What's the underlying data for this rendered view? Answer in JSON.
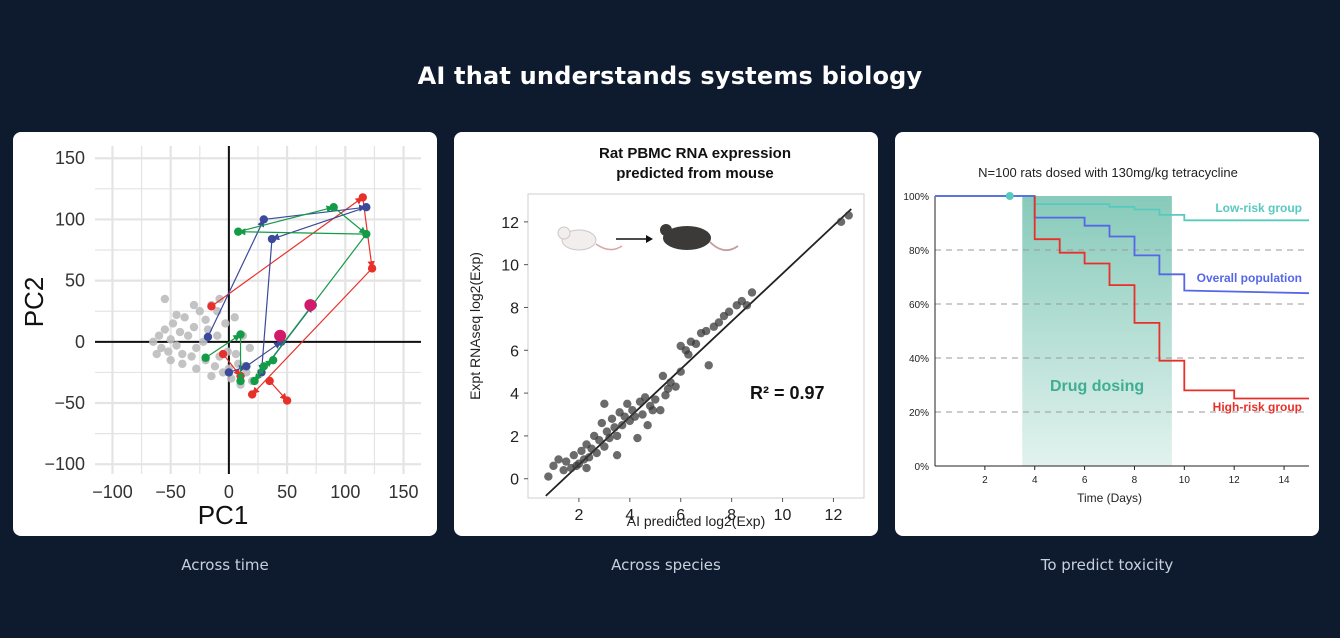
{
  "headline": "AI that understands systems biology",
  "captions": [
    "Across time",
    "Across species",
    "To predict toxicity"
  ],
  "colors": {
    "background": "#0e1a2e",
    "gray": "#bdbdbd",
    "red": "#e8302a",
    "blue": "#3b4a9a",
    "green": "#139b48",
    "magenta": "#d11a6a",
    "teal": "#58c9bf",
    "overall": "#5566e8",
    "dosing": "#5fb9a3"
  },
  "chart_data": [
    {
      "type": "scatter",
      "xlabel": "PC1",
      "ylabel": "PC2",
      "xlim": [
        -115,
        165
      ],
      "ylim": [
        -108,
        160
      ],
      "xticks": [
        "−100",
        "−50",
        "0",
        "50",
        "100",
        "150"
      ],
      "yticks": [
        "−100",
        "−50",
        "0",
        "50",
        "100",
        "150"
      ],
      "grid": true,
      "series": [
        {
          "color": "gray",
          "points": [
            [
              -65,
              0
            ],
            [
              -60,
              5
            ],
            [
              -58,
              -5
            ],
            [
              -55,
              10
            ],
            [
              -52,
              -8
            ],
            [
              -50,
              2
            ],
            [
              -48,
              15
            ],
            [
              -45,
              -3
            ],
            [
              -42,
              8
            ],
            [
              -40,
              -10
            ],
            [
              -38,
              20
            ],
            [
              -35,
              5
            ],
            [
              -32,
              -12
            ],
            [
              -30,
              12
            ],
            [
              -28,
              -5
            ],
            [
              -25,
              25
            ],
            [
              -22,
              0
            ],
            [
              -20,
              -15
            ],
            [
              -18,
              10
            ],
            [
              -15,
              30
            ],
            [
              -12,
              -20
            ],
            [
              -10,
              5
            ],
            [
              -8,
              35
            ],
            [
              -5,
              -25
            ],
            [
              -3,
              15
            ],
            [
              -1,
              -8
            ],
            [
              2,
              -30
            ],
            [
              5,
              20
            ],
            [
              8,
              -18
            ],
            [
              10,
              -35
            ],
            [
              12,
              5
            ],
            [
              15,
              -25
            ],
            [
              18,
              -5
            ],
            [
              20,
              -32
            ],
            [
              -55,
              35
            ],
            [
              -45,
              22
            ],
            [
              -30,
              30
            ],
            [
              -20,
              18
            ],
            [
              -10,
              25
            ],
            [
              -62,
              -10
            ],
            [
              -50,
              -15
            ],
            [
              -40,
              -18
            ],
            [
              -28,
              -22
            ],
            [
              -15,
              -28
            ],
            [
              0,
              -22
            ],
            [
              -8,
              -12
            ],
            [
              6,
              -10
            ],
            [
              14,
              -20
            ]
          ]
        },
        {
          "name": "",
          "color": "red",
          "points": [
            [
              -15,
              29
            ],
            [
              -5,
              -10
            ],
            [
              10,
              -28
            ],
            [
              20,
              -43
            ],
            [
              35,
              -32
            ],
            [
              50,
              -48
            ],
            [
              115,
              118
            ],
            [
              123,
              60
            ],
            [
              70,
              30
            ]
          ],
          "edges": [
            [
              0,
              6
            ],
            [
              6,
              7
            ],
            [
              7,
              3
            ],
            [
              4,
              5
            ],
            [
              1,
              2
            ]
          ]
        },
        {
          "color": "blue",
          "points": [
            [
              -18,
              4
            ],
            [
              0,
              -25
            ],
            [
              15,
              -20
            ],
            [
              28,
              -25
            ],
            [
              30,
              100
            ],
            [
              37,
              84
            ],
            [
              118,
              110
            ],
            [
              72,
              30
            ],
            [
              45,
              0
            ]
          ],
          "edges": [
            [
              0,
              4
            ],
            [
              4,
              6
            ],
            [
              6,
              5
            ],
            [
              5,
              3
            ],
            [
              3,
              7
            ],
            [
              1,
              2
            ],
            [
              2,
              8
            ]
          ]
        },
        {
          "color": "green",
          "points": [
            [
              -20,
              -13
            ],
            [
              8,
              90
            ],
            [
              10,
              6
            ],
            [
              10,
              -32
            ],
            [
              22,
              -32
            ],
            [
              30,
              -20
            ],
            [
              38,
              -15
            ],
            [
              90,
              110
            ],
            [
              118,
              88
            ]
          ],
          "edges": [
            [
              1,
              7
            ],
            [
              7,
              8
            ],
            [
              8,
              1
            ],
            [
              8,
              4
            ],
            [
              4,
              5
            ],
            [
              5,
              6
            ],
            [
              2,
              3
            ],
            [
              0,
              2
            ]
          ]
        },
        {
          "color": "magenta",
          "large": true,
          "points": [
            [
              44,
              5
            ],
            [
              70,
              30
            ]
          ]
        }
      ]
    },
    {
      "type": "scatter",
      "title_lines": [
        "Rat PBMC RNA expression",
        "predicted from mouse"
      ],
      "xlabel": "AI predicted log2(Exp)",
      "ylabel": "Expt RNAseq log2(Exp)",
      "xlim": [
        0,
        13.2
      ],
      "ylim": [
        -0.9,
        13.3
      ],
      "xticks": [
        "2",
        "4",
        "6",
        "8",
        "10",
        "12"
      ],
      "yticks": [
        "0",
        "2",
        "4",
        "6",
        "8",
        "10",
        "12"
      ],
      "annotation": "R² = 0.97",
      "fit_line": [
        [
          0.7,
          -0.8
        ],
        [
          12.7,
          12.6
        ]
      ],
      "points": [
        [
          0.8,
          0.1
        ],
        [
          1.0,
          0.6
        ],
        [
          1.2,
          0.9
        ],
        [
          1.4,
          0.4
        ],
        [
          1.5,
          0.8
        ],
        [
          1.7,
          0.5
        ],
        [
          1.8,
          1.1
        ],
        [
          2.0,
          0.7
        ],
        [
          2.1,
          1.3
        ],
        [
          2.2,
          0.9
        ],
        [
          2.3,
          1.6
        ],
        [
          2.4,
          1.0
        ],
        [
          2.5,
          1.4
        ],
        [
          2.6,
          2.0
        ],
        [
          2.7,
          1.2
        ],
        [
          2.8,
          1.8
        ],
        [
          2.9,
          2.6
        ],
        [
          3.0,
          1.5
        ],
        [
          3.1,
          2.2
        ],
        [
          3.2,
          1.9
        ],
        [
          3.3,
          2.8
        ],
        [
          3.4,
          2.4
        ],
        [
          3.5,
          2.0
        ],
        [
          3.6,
          3.1
        ],
        [
          3.7,
          2.5
        ],
        [
          3.8,
          2.9
        ],
        [
          3.9,
          3.5
        ],
        [
          4.0,
          2.7
        ],
        [
          4.1,
          3.2
        ],
        [
          4.2,
          2.9
        ],
        [
          4.4,
          3.6
        ],
        [
          4.5,
          3.0
        ],
        [
          4.6,
          3.8
        ],
        [
          4.7,
          2.5
        ],
        [
          4.8,
          3.4
        ],
        [
          5.0,
          3.7
        ],
        [
          5.2,
          3.2
        ],
        [
          5.4,
          3.9
        ],
        [
          5.6,
          4.5
        ],
        [
          5.8,
          4.3
        ],
        [
          6.0,
          5.0
        ],
        [
          6.0,
          6.2
        ],
        [
          6.2,
          6.0
        ],
        [
          6.4,
          6.4
        ],
        [
          6.6,
          6.3
        ],
        [
          6.8,
          6.8
        ],
        [
          7.0,
          6.9
        ],
        [
          7.1,
          5.3
        ],
        [
          7.3,
          7.1
        ],
        [
          7.5,
          7.3
        ],
        [
          7.7,
          7.6
        ],
        [
          7.9,
          7.8
        ],
        [
          8.2,
          8.1
        ],
        [
          8.4,
          8.3
        ],
        [
          8.6,
          8.1
        ],
        [
          8.8,
          8.7
        ],
        [
          3.5,
          1.1
        ],
        [
          2.3,
          0.5
        ],
        [
          3.0,
          3.5
        ],
        [
          4.3,
          1.9
        ],
        [
          5.3,
          4.8
        ],
        [
          12.3,
          12.0
        ],
        [
          12.6,
          12.3
        ],
        [
          4.9,
          3.2
        ],
        [
          1.9,
          0.6
        ],
        [
          6.3,
          5.8
        ],
        [
          5.5,
          4.2
        ]
      ]
    },
    {
      "type": "line",
      "title": "N=100 rats dosed with 130mg/kg tetracycline",
      "xlabel": "Time (Days)",
      "xlim": [
        0,
        15
      ],
      "ylim": [
        0,
        100
      ],
      "xticks": [
        "2",
        "4",
        "6",
        "8",
        "10",
        "12",
        "14"
      ],
      "yticks": [
        "0%",
        "20%",
        "40%",
        "60%",
        "80%",
        "100%"
      ],
      "shaded_region": {
        "x": [
          3.5,
          9.5
        ],
        "label": "Drug dosing"
      },
      "marker": {
        "x": 3,
        "y": 100
      },
      "series": [
        {
          "name": "Low-risk group",
          "color": "teal",
          "points": [
            [
              0,
              100
            ],
            [
              4,
              100
            ],
            [
              4,
              97
            ],
            [
              7,
              97
            ],
            [
              7,
              96
            ],
            [
              8,
              96
            ],
            [
              8,
              95
            ],
            [
              9,
              95
            ],
            [
              9,
              93
            ],
            [
              10,
              93
            ],
            [
              10,
              91
            ],
            [
              15,
              91
            ]
          ]
        },
        {
          "name": "Overall population",
          "color": "overall",
          "points": [
            [
              0,
              100
            ],
            [
              4,
              100
            ],
            [
              4,
              92
            ],
            [
              6,
              92
            ],
            [
              6,
              89
            ],
            [
              7,
              89
            ],
            [
              7,
              85
            ],
            [
              8,
              85
            ],
            [
              8,
              78
            ],
            [
              9,
              78
            ],
            [
              9,
              71
            ],
            [
              10,
              71
            ],
            [
              10,
              65
            ],
            [
              15,
              64
            ]
          ]
        },
        {
          "name": "High-risk group",
          "color": "red",
          "points": [
            [
              4,
              100
            ],
            [
              4,
              84
            ],
            [
              5,
              84
            ],
            [
              5,
              79
            ],
            [
              6,
              79
            ],
            [
              6,
              75
            ],
            [
              7,
              75
            ],
            [
              7,
              67
            ],
            [
              8,
              67
            ],
            [
              8,
              53
            ],
            [
              9,
              53
            ],
            [
              9,
              39
            ],
            [
              10,
              39
            ],
            [
              10,
              28
            ],
            [
              12,
              28
            ],
            [
              12,
              25
            ],
            [
              15,
              25
            ]
          ]
        }
      ]
    }
  ]
}
